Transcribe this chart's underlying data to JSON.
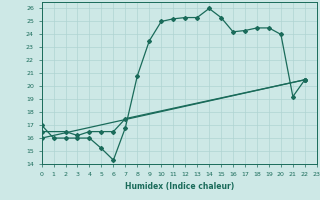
{
  "xlabel": "Humidex (Indice chaleur)",
  "xlim": [
    0,
    23
  ],
  "ylim": [
    14,
    26.5
  ],
  "yticks": [
    14,
    15,
    16,
    17,
    18,
    19,
    20,
    21,
    22,
    23,
    24,
    25,
    26
  ],
  "xticks": [
    0,
    1,
    2,
    3,
    4,
    5,
    6,
    7,
    8,
    9,
    10,
    11,
    12,
    13,
    14,
    15,
    16,
    17,
    18,
    19,
    20,
    21,
    22,
    23
  ],
  "bg_color": "#cde8e6",
  "grid_color": "#b0d4d2",
  "line_color": "#1a6b5a",
  "line1_x": [
    0,
    1,
    2,
    3,
    4,
    5,
    6,
    7,
    8,
    9,
    10,
    11,
    12,
    13,
    14,
    15,
    16,
    17,
    18,
    19,
    20,
    21,
    22
  ],
  "line1_y": [
    17,
    16,
    16,
    16,
    16,
    15.2,
    14.3,
    16.8,
    20.8,
    23.5,
    25.0,
    25.2,
    25.3,
    25.3,
    26.0,
    25.3,
    24.2,
    24.3,
    24.5,
    24.5,
    24.0,
    19.2,
    20.5
  ],
  "line2_x": [
    0,
    2,
    3,
    4,
    5,
    6,
    7,
    22
  ],
  "line2_y": [
    16.5,
    16.5,
    16.2,
    16.5,
    16.5,
    16.5,
    17.5,
    20.5
  ],
  "line3_x": [
    0,
    22
  ],
  "line3_y": [
    16,
    20.5
  ],
  "marker": "D",
  "markersize": 2.0,
  "linewidth": 0.9
}
